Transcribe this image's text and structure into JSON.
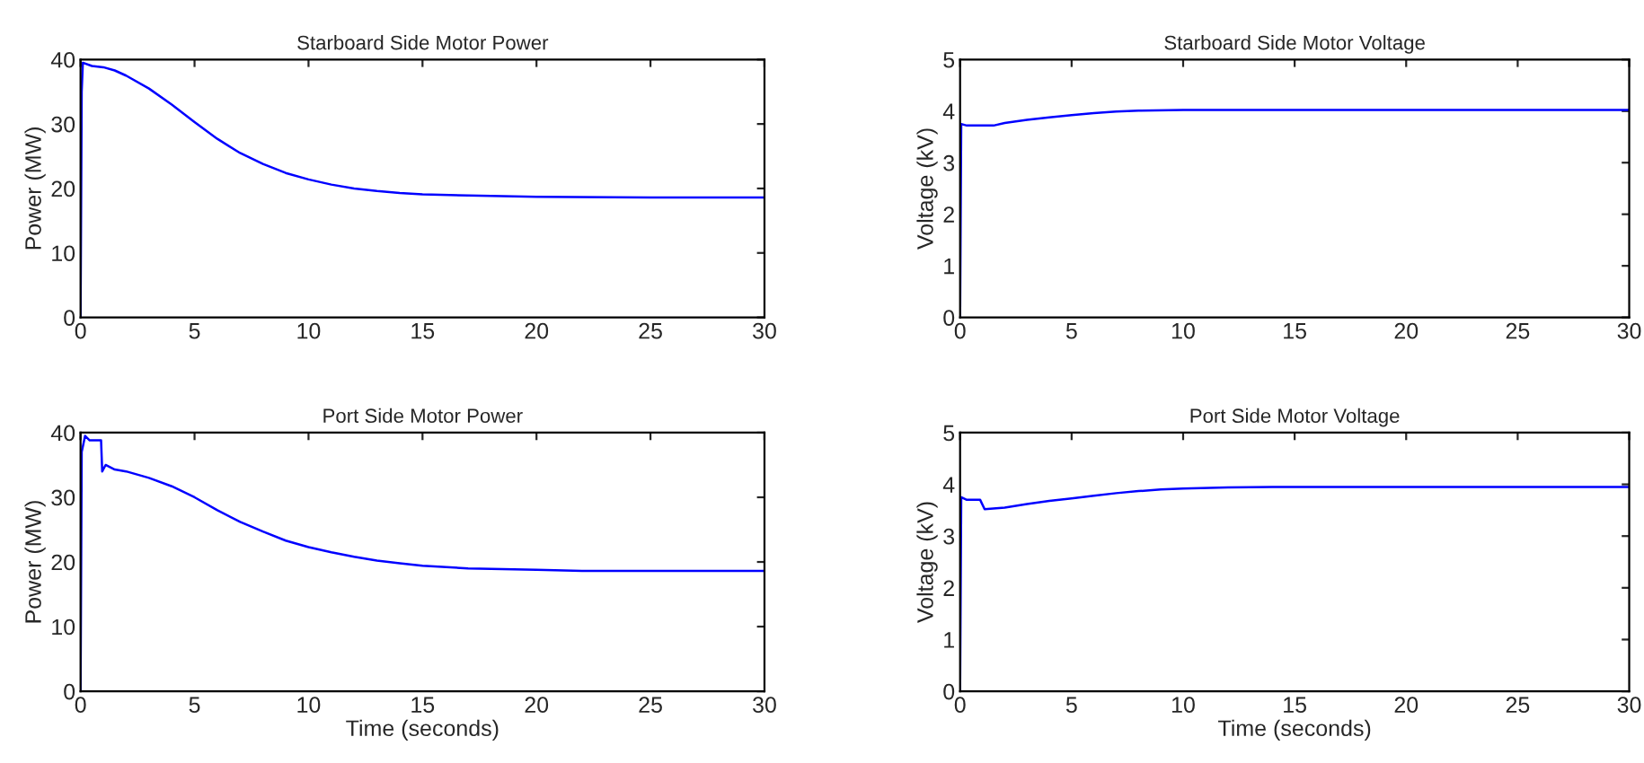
{
  "chart_data": [
    {
      "type": "line",
      "title": "Starboard Side Motor Power",
      "ylabel": "Power (MW)",
      "xlim": [
        0,
        30
      ],
      "ylim": [
        0,
        40
      ],
      "xticks": [
        0,
        5,
        10,
        15,
        20,
        25,
        30
      ],
      "yticks": [
        0,
        10,
        20,
        30,
        40
      ],
      "grid": false,
      "legend": false,
      "series": [
        {
          "color": "#0000ff",
          "x": [
            0,
            0.05,
            0.1,
            0.5,
            1,
            1.5,
            2,
            3,
            4,
            5,
            6,
            7,
            8,
            9,
            10,
            11,
            12,
            13,
            14,
            15,
            17,
            20,
            25,
            30
          ],
          "values": [
            0,
            35,
            39.5,
            39,
            38.8,
            38.3,
            37.5,
            35.5,
            33,
            30.3,
            27.7,
            25.5,
            23.8,
            22.4,
            21.4,
            20.6,
            20,
            19.6,
            19.3,
            19.1,
            18.9,
            18.7,
            18.6,
            18.6
          ]
        }
      ]
    },
    {
      "type": "line",
      "title": "Starboard Side Motor Voltage",
      "ylabel": "Voltage (kV)",
      "xlim": [
        0,
        30
      ],
      "ylim": [
        0,
        5
      ],
      "xticks": [
        0,
        5,
        10,
        15,
        20,
        25,
        30
      ],
      "yticks": [
        0,
        1,
        2,
        3,
        4,
        5
      ],
      "grid": false,
      "legend": false,
      "series": [
        {
          "color": "#0000ff",
          "x": [
            0,
            0.05,
            0.3,
            1.5,
            2,
            3,
            4,
            5,
            6,
            7,
            8,
            10,
            15,
            20,
            30
          ],
          "values": [
            0,
            3.75,
            3.72,
            3.72,
            3.77,
            3.83,
            3.88,
            3.92,
            3.96,
            3.99,
            4.01,
            4.02,
            4.02,
            4.02,
            4.02
          ]
        }
      ]
    },
    {
      "type": "line",
      "title": "Port Side Motor Power",
      "xlabel": "Time (seconds)",
      "ylabel": "Power (MW)",
      "xlim": [
        0,
        30
      ],
      "ylim": [
        0,
        40
      ],
      "xticks": [
        0,
        5,
        10,
        15,
        20,
        25,
        30
      ],
      "yticks": [
        0,
        10,
        20,
        30,
        40
      ],
      "grid": false,
      "legend": false,
      "series": [
        {
          "color": "#0000ff",
          "x": [
            0,
            0.05,
            0.2,
            0.4,
            0.9,
            0.95,
            1.1,
            1.5,
            2,
            3,
            4,
            5,
            6,
            7,
            8,
            9,
            10,
            11,
            12,
            13,
            14,
            15,
            17,
            20,
            22,
            30
          ],
          "values": [
            0,
            37,
            39.5,
            38.8,
            38.8,
            34,
            35,
            34.3,
            34,
            33,
            31.7,
            30,
            28,
            26.2,
            24.7,
            23.3,
            22.3,
            21.5,
            20.8,
            20.2,
            19.8,
            19.4,
            19,
            18.8,
            18.6,
            18.6
          ]
        }
      ]
    },
    {
      "type": "line",
      "title": "Port Side Motor Voltage",
      "xlabel": "Time (seconds)",
      "ylabel": "Voltage (kV)",
      "xlim": [
        0,
        30
      ],
      "ylim": [
        0,
        5
      ],
      "xticks": [
        0,
        5,
        10,
        15,
        20,
        25,
        30
      ],
      "yticks": [
        0,
        1,
        2,
        3,
        4,
        5
      ],
      "grid": false,
      "legend": false,
      "series": [
        {
          "color": "#0000ff",
          "x": [
            0,
            0.05,
            0.3,
            0.9,
            1.1,
            2,
            3,
            4,
            5,
            6,
            7,
            8,
            9,
            10,
            12,
            14,
            30
          ],
          "values": [
            0,
            3.75,
            3.7,
            3.7,
            3.52,
            3.55,
            3.62,
            3.68,
            3.73,
            3.78,
            3.83,
            3.87,
            3.9,
            3.92,
            3.94,
            3.95,
            3.95
          ]
        }
      ]
    }
  ]
}
